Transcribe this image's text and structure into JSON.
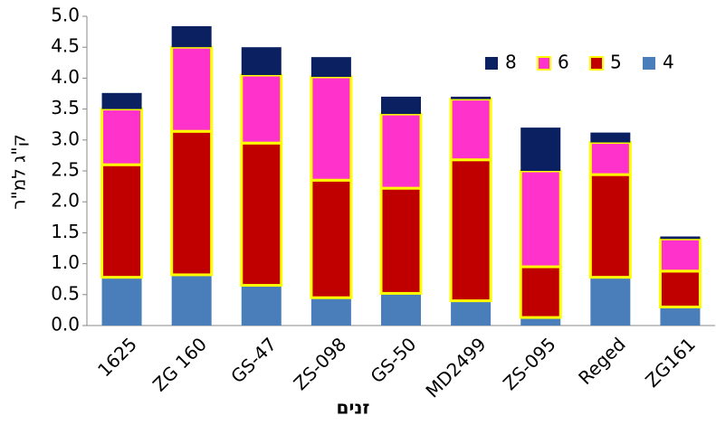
{
  "chart_data": {
    "type": "stacked_bar",
    "y_label": "ק\"ג למ\"ר",
    "x_label": "זנים",
    "categories": [
      "1625",
      "ZG 160",
      "GS-47",
      "ZS-098",
      "GS-50",
      "MD2499",
      "ZS-095",
      "Reged",
      "ZG161"
    ],
    "series": [
      {
        "name": "4",
        "color": "#4a7ebb",
        "values": [
          0.78,
          0.82,
          0.65,
          0.45,
          0.52,
          0.4,
          0.13,
          0.78,
          0.3
        ]
      },
      {
        "name": "5",
        "color": "#c00000",
        "edgecolor": "#ffff00",
        "values": [
          1.82,
          2.32,
          2.3,
          1.9,
          1.7,
          2.28,
          0.82,
          1.66,
          0.58
        ]
      },
      {
        "name": "6",
        "color": "#ff33cc",
        "edgecolor": "#ffff00",
        "values": [
          0.9,
          1.36,
          1.1,
          1.67,
          1.2,
          0.98,
          1.55,
          0.52,
          0.52
        ]
      },
      {
        "name": "8",
        "color": "#0a2060",
        "values": [
          0.26,
          0.34,
          0.45,
          0.32,
          0.28,
          0.04,
          0.7,
          0.16,
          0.04
        ]
      }
    ],
    "ylim": [
      0,
      5
    ],
    "yticks": [
      {
        "value": 0,
        "label": "0.0"
      },
      {
        "value": 0.5,
        "label": "0.5"
      },
      {
        "value": 1,
        "label": "1.0"
      },
      {
        "value": 1.5,
        "label": "1.5"
      },
      {
        "value": 2,
        "label": "2.0"
      },
      {
        "value": 2.5,
        "label": "2.5"
      },
      {
        "value": 3,
        "label": "3.0"
      },
      {
        "value": 3.5,
        "label": "3.5"
      },
      {
        "value": 4,
        "label": "4.0"
      },
      {
        "value": 4.5,
        "label": "4.5"
      },
      {
        "value": 5,
        "label": "5.0"
      }
    ],
    "legend": "upper right"
  }
}
